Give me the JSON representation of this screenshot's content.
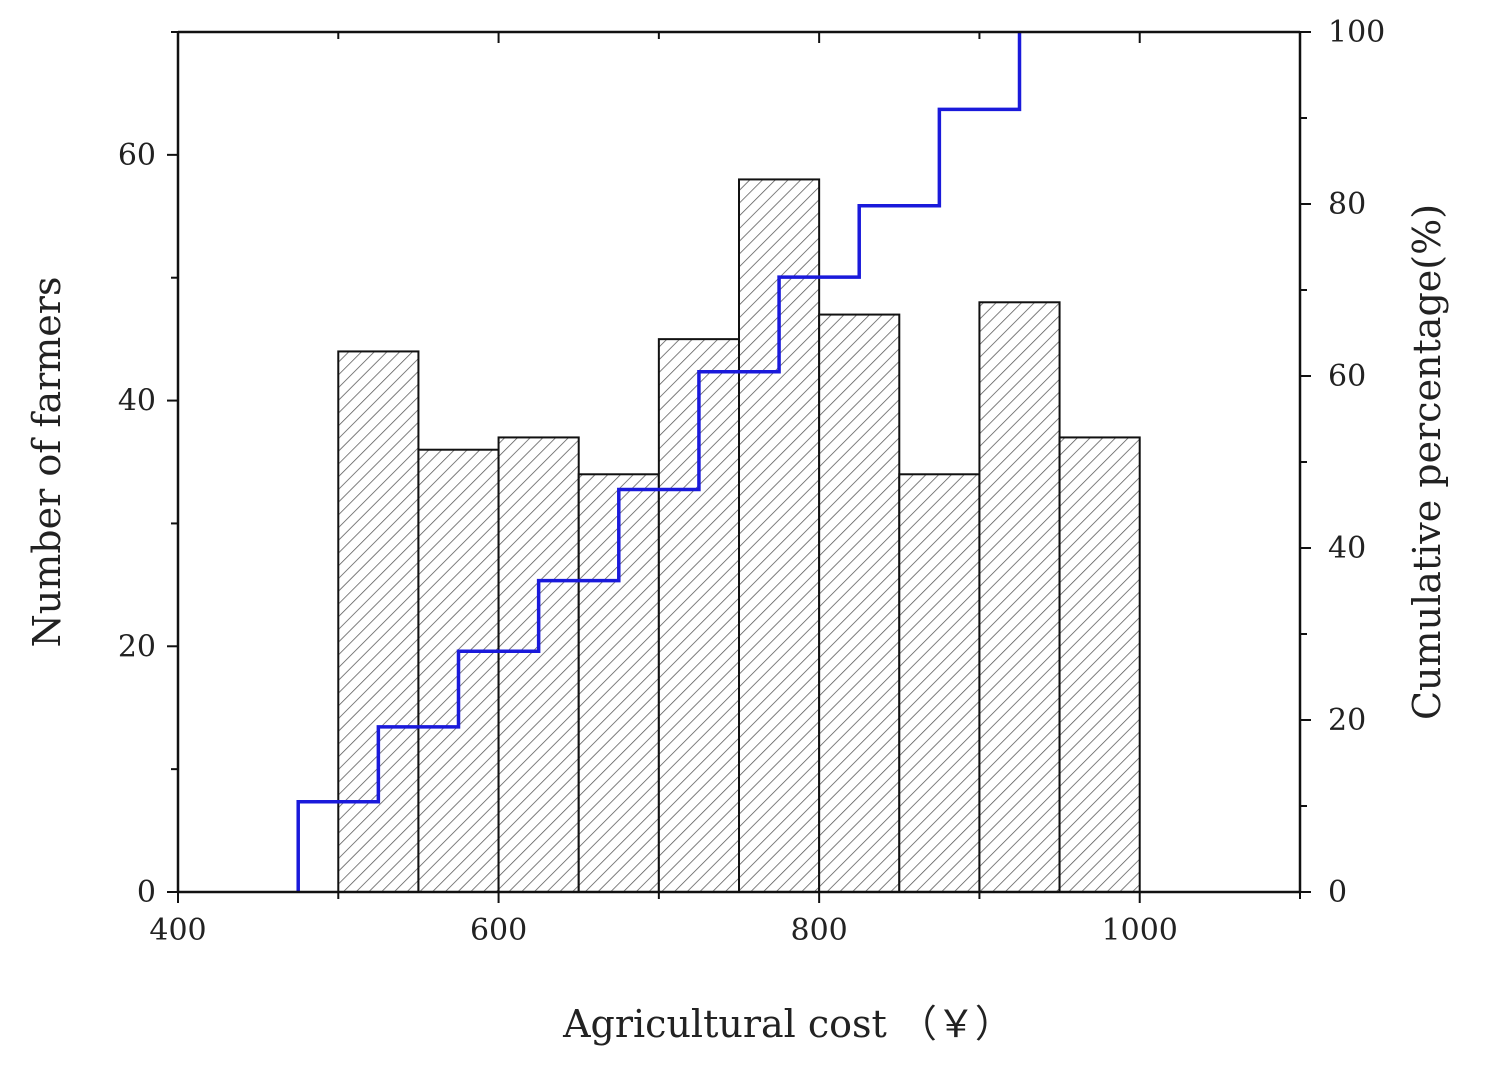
{
  "chart_data": {
    "type": "bar",
    "xlabel": "Agricultural cost （￥）",
    "ylabel": "Number of farmers",
    "y2label": "Cumulative percentage(%)",
    "xlim": [
      400,
      1100
    ],
    "ylim": [
      0,
      70
    ],
    "y2lim": [
      0,
      100
    ],
    "x_ticks": [
      400,
      600,
      800,
      1000
    ],
    "y_ticks": [
      0,
      20,
      40,
      60
    ],
    "y2_ticks": [
      0,
      20,
      40,
      60,
      80,
      100
    ],
    "grid": false,
    "bins": [
      {
        "x0": 500,
        "x1": 550,
        "count": 44
      },
      {
        "x0": 550,
        "x1": 600,
        "count": 36
      },
      {
        "x0": 600,
        "x1": 650,
        "count": 37
      },
      {
        "x0": 650,
        "x1": 700,
        "count": 34
      },
      {
        "x0": 700,
        "x1": 750,
        "count": 45
      },
      {
        "x0": 750,
        "x1": 800,
        "count": 58
      },
      {
        "x0": 800,
        "x1": 850,
        "count": 47
      },
      {
        "x0": 850,
        "x1": 900,
        "count": 34
      },
      {
        "x0": 900,
        "x1": 950,
        "count": 48
      },
      {
        "x0": 950,
        "x1": 1000,
        "count": 37
      }
    ],
    "cumulative": {
      "x": [
        475,
        525,
        575,
        625,
        675,
        725,
        775,
        825,
        875,
        925
      ],
      "values": [
        10.5,
        19.2,
        28.0,
        36.2,
        46.8,
        60.5,
        71.5,
        79.8,
        91.0,
        100
      ]
    },
    "colors": {
      "bar_fill": "#ffffff",
      "bar_hatch": "#555555",
      "bar_edge": "#111111",
      "cumulative_line": "#1a1adb",
      "axis": "#111111"
    }
  }
}
